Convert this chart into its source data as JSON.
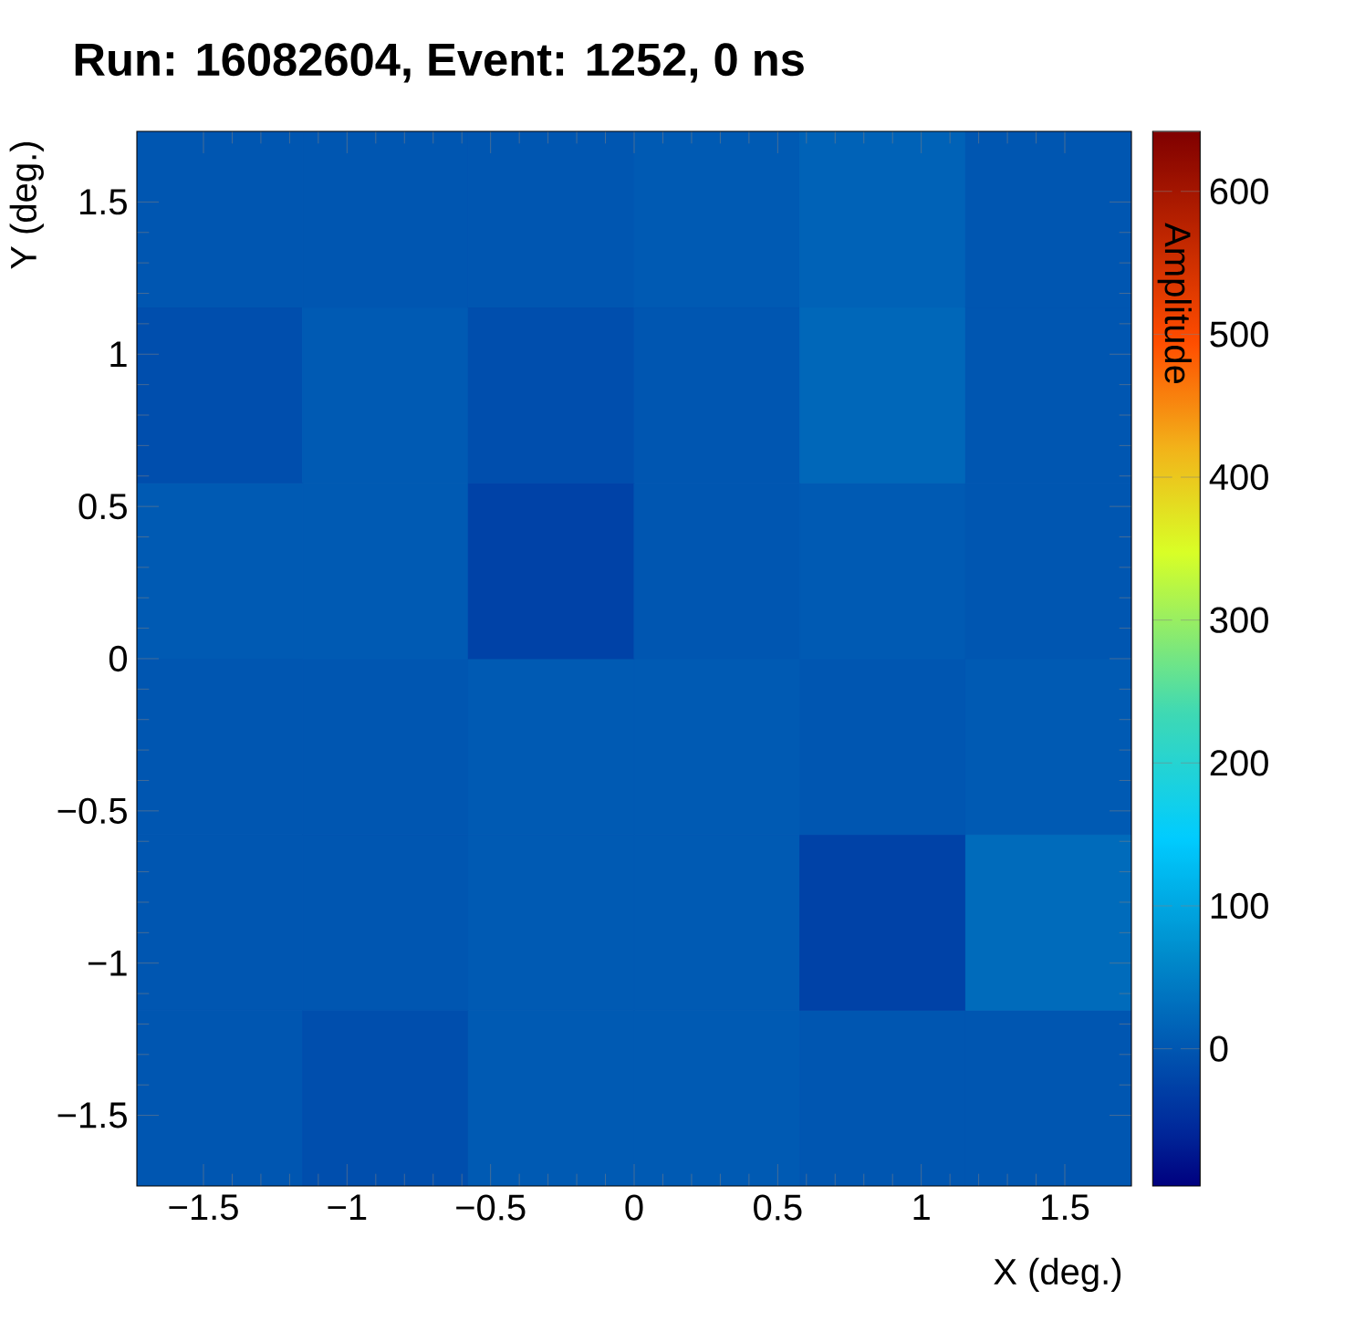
{
  "chart_data": {
    "type": "heatmap",
    "title": "Run: 16082604, Event: 1252, 0 ns",
    "xlabel": "X (deg.)",
    "ylabel": "Y (deg.)",
    "clabel": "Amplitude",
    "xlim": [
      -1.732,
      1.732
    ],
    "ylim": [
      -1.732,
      1.732
    ],
    "xticks": [
      {
        "value": -1.5,
        "label": "−1.5"
      },
      {
        "value": -1,
        "label": "−1"
      },
      {
        "value": -0.5,
        "label": "−0.5"
      },
      0,
      0.5,
      1,
      1.5
    ],
    "yticks": [
      {
        "value": -1.5,
        "label": "−1.5"
      },
      {
        "value": -1,
        "label": "−1"
      },
      {
        "value": -0.5,
        "label": "−0.5"
      },
      0,
      0.5,
      1,
      1.5
    ],
    "cells": [
      [
        0,
        0,
        0,
        5,
        15,
        0
      ],
      [
        -10,
        5,
        -10,
        0,
        20,
        0
      ],
      [
        5,
        5,
        -25,
        0,
        5,
        0
      ],
      [
        0,
        0,
        5,
        5,
        0,
        5
      ],
      [
        0,
        0,
        5,
        5,
        -25,
        25
      ],
      [
        0,
        -10,
        5,
        5,
        0,
        0
      ]
    ],
    "clim": [
      -96,
      642
    ],
    "cticks": [
      0,
      100,
      200,
      300,
      400,
      500,
      600
    ]
  }
}
